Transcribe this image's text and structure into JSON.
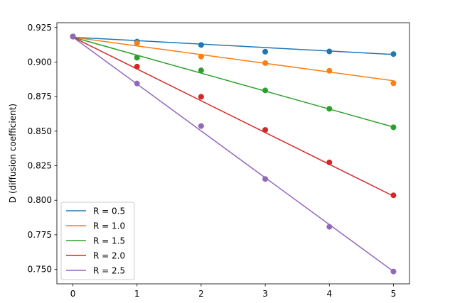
{
  "chart_data": {
    "type": "line",
    "title": "",
    "xlabel": "",
    "ylabel": "D (diffusion coefficient)",
    "xlim": [
      -0.25,
      5.25
    ],
    "ylim": [
      0.7395,
      0.9285
    ],
    "xticks": [
      0,
      1,
      2,
      3,
      4,
      5
    ],
    "yticks": [
      0.75,
      0.775,
      0.8,
      0.825,
      0.85,
      0.875,
      0.9,
      0.925
    ],
    "xtick_labels": [
      "0",
      "1",
      "2",
      "3",
      "4",
      "5"
    ],
    "ytick_labels": [
      "0.750",
      "0.775",
      "0.800",
      "0.825",
      "0.850",
      "0.875",
      "0.900",
      "0.925"
    ],
    "grid": false,
    "legend_position": "lower-left",
    "x": [
      0,
      1,
      2,
      3,
      4,
      5
    ],
    "series": [
      {
        "name": "R = 0.5",
        "color": "#1f77b4",
        "points": [
          0.9185,
          0.9148,
          0.9124,
          0.9075,
          0.9077,
          0.9058
        ],
        "fit": [
          0.918,
          0.9155,
          0.913,
          0.9105,
          0.908,
          0.9055
        ]
      },
      {
        "name": "R = 1.0",
        "color": "#ff7f0e",
        "points": [
          0.9185,
          0.9137,
          0.904,
          0.8993,
          0.8937,
          0.8847
        ],
        "fit": [
          0.918,
          0.9117,
          0.9054,
          0.8991,
          0.8928,
          0.8865
        ]
      },
      {
        "name": "R = 1.5",
        "color": "#2ca02c",
        "points": [
          0.9185,
          0.9032,
          0.894,
          0.8795,
          0.8662,
          0.8528
        ],
        "fit": [
          0.918,
          0.905,
          0.892,
          0.879,
          0.866,
          0.853
        ]
      },
      {
        "name": "R = 2.0",
        "color": "#d62728",
        "points": [
          0.9185,
          0.8967,
          0.8749,
          0.8509,
          0.8274,
          0.8036
        ],
        "fit": [
          0.918,
          0.895,
          0.872,
          0.849,
          0.826,
          0.803
        ]
      },
      {
        "name": "R = 2.5",
        "color": "#9467bd",
        "points": [
          0.9185,
          0.8845,
          0.8537,
          0.8154,
          0.7808,
          0.7484
        ],
        "fit": [
          0.918,
          0.8841,
          0.8502,
          0.8163,
          0.7824,
          0.7485
        ]
      }
    ]
  }
}
